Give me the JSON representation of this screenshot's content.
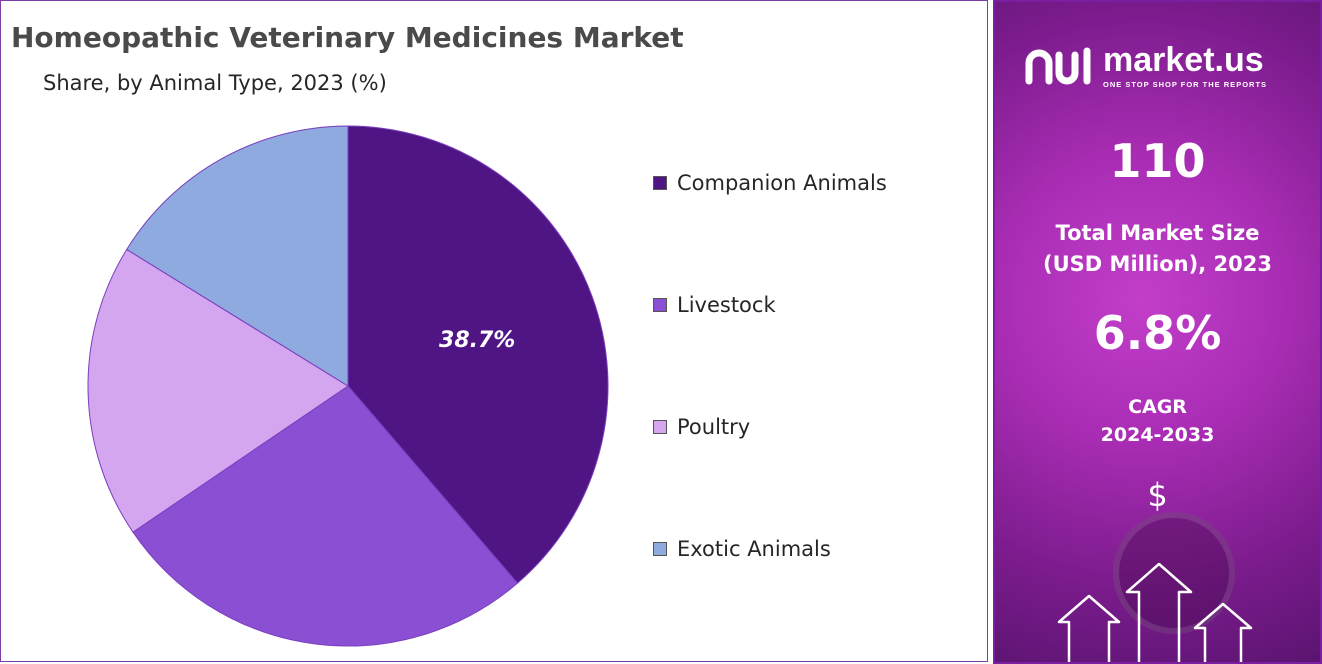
{
  "title": "Homeopathic Veterinary Medicines Market",
  "subtitle": "Share, by Animal Type, 2023 (%)",
  "chart_data": {
    "type": "pie",
    "categories": [
      "Companion Animals",
      "Livestock",
      "Poultry",
      "Exotic Animals"
    ],
    "values": [
      38.7,
      26.8,
      18.3,
      16.2
    ],
    "colors": [
      "#4f1585",
      "#8a4fd3",
      "#d5a6f0",
      "#8faadf"
    ],
    "data_labels": [
      "38.7%",
      null,
      null,
      null
    ],
    "legend_position": "right"
  },
  "side_panel": {
    "logo": {
      "name": "market.us",
      "tagline": "ONE STOP SHOP FOR THE REPORTS"
    },
    "market_size": {
      "value": "110",
      "label_line1": "Total Market Size",
      "label_line2": "(USD Million), 2023"
    },
    "cagr": {
      "value": "6.8%",
      "label_line1": "CAGR",
      "label_line2": "2024-2033"
    },
    "icons": [
      "dollar-icon",
      "up-arrow-icon"
    ]
  }
}
